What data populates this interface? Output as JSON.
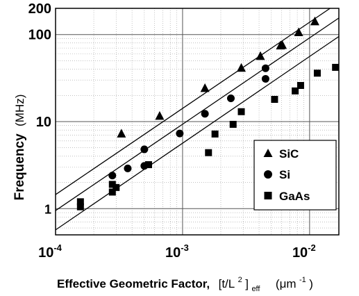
{
  "chart_data": {
    "type": "scatter",
    "x_scale": "log",
    "y_scale": "log",
    "xlim": [
      0.0001,
      0.017
    ],
    "ylim": [
      0.5,
      200
    ],
    "grid": true,
    "legend_position": "center-right",
    "xlabel": {
      "main": "Effective Geometric Factor,",
      "bracket_open": "[t/L",
      "sup": "2",
      "bracket_close": "]",
      "sub": "eff",
      "unit_open": "(μm",
      "unit_sup": "-1",
      "unit_close": ")"
    },
    "ylabel": {
      "main": "Frequency",
      "unit": "(MHz)"
    },
    "x_ticks": [
      {
        "value": 0.0001,
        "base": "10",
        "exp": "-4"
      },
      {
        "value": 0.001,
        "base": "10",
        "exp": "-3"
      },
      {
        "value": 0.01,
        "base": "10",
        "exp": "-2"
      }
    ],
    "y_ticks": [
      {
        "value": 1,
        "label": "1"
      },
      {
        "value": 10,
        "label": "10"
      },
      {
        "value": 100,
        "label": "100"
      },
      {
        "value": 200,
        "label": "200"
      }
    ],
    "series": [
      {
        "name": "SiC",
        "marker": "triangle",
        "points": [
          [
            0.00033,
            7.2
          ],
          [
            0.00066,
            11.5
          ],
          [
            0.0015,
            24
          ],
          [
            0.0029,
            41
          ],
          [
            0.0041,
            56
          ],
          [
            0.0059,
            74
          ],
          [
            0.0061,
            75
          ],
          [
            0.0082,
            105
          ],
          [
            0.011,
            140
          ]
        ]
      },
      {
        "name": "Si",
        "marker": "circle",
        "points": [
          [
            0.00028,
            2.4
          ],
          [
            0.00037,
            2.9
          ],
          [
            0.0005,
            3.1
          ],
          [
            0.0005,
            4.8
          ],
          [
            0.00095,
            7.3
          ],
          [
            0.0015,
            12.3
          ],
          [
            0.0024,
            18.5
          ],
          [
            0.0045,
            31
          ],
          [
            0.0045,
            41
          ]
        ]
      },
      {
        "name": "GaAs",
        "marker": "square",
        "points": [
          [
            0.000157,
            1.05
          ],
          [
            0.000157,
            1.2
          ],
          [
            0.00028,
            1.55
          ],
          [
            0.00028,
            1.9
          ],
          [
            0.0003,
            1.75
          ],
          [
            0.00054,
            3.2
          ],
          [
            0.0016,
            4.4
          ],
          [
            0.0018,
            7.2
          ],
          [
            0.0025,
            9.3
          ],
          [
            0.0029,
            13
          ],
          [
            0.0053,
            18
          ],
          [
            0.0077,
            22.5
          ],
          [
            0.0085,
            26
          ],
          [
            0.0115,
            36
          ],
          [
            0.016,
            42
          ]
        ]
      }
    ],
    "fit_lines": [
      {
        "name": "SiC",
        "points": [
          [
            0.0001,
            1.45
          ],
          [
            0.0145,
            200
          ]
        ]
      },
      {
        "name": "Si",
        "points": [
          [
            0.0001,
            0.95
          ],
          [
            0.017,
            155
          ]
        ]
      },
      {
        "name": "GaAs",
        "points": [
          [
            0.0001,
            0.57
          ],
          [
            0.017,
            95
          ]
        ]
      }
    ],
    "legend": [
      {
        "label": "SiC",
        "marker": "triangle"
      },
      {
        "label": "Si",
        "marker": "circle"
      },
      {
        "label": "GaAs",
        "marker": "square"
      }
    ]
  }
}
